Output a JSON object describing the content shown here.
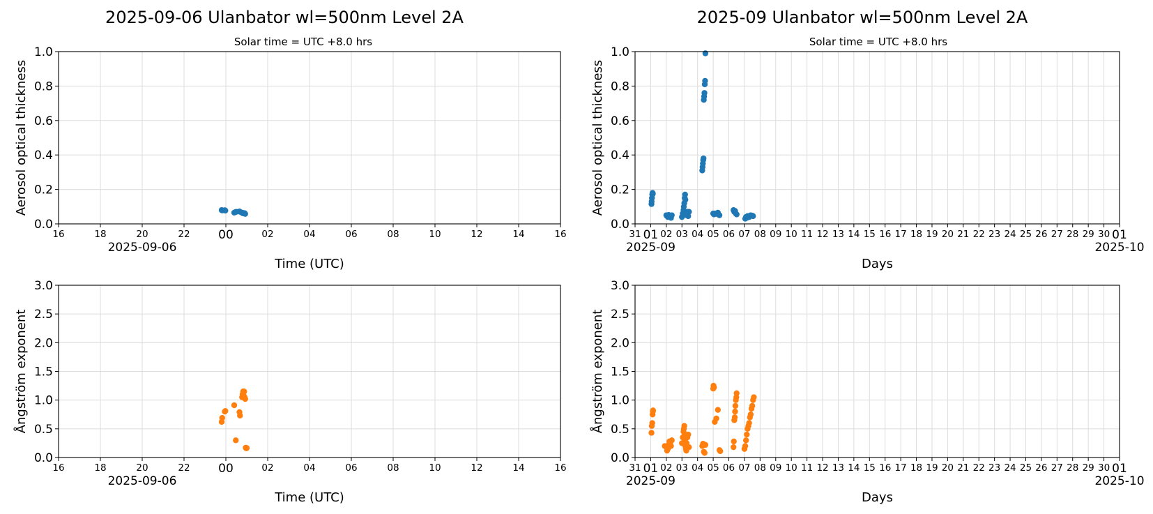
{
  "colors": {
    "aot": "#1f77b4",
    "angstrom": "#ff7f0e",
    "grid": "#dcdcdc"
  },
  "columns": [
    {
      "title": "2025-09-06  Ulanbator  wl=500nm  Level 2A",
      "subtitle": "Solar time = UTC +8.0 hrs"
    },
    {
      "title": "2025-09  Ulanbator  wl=500nm  Level 2A",
      "subtitle": "Solar time = UTC +8.0 hrs"
    }
  ],
  "chart_data": [
    {
      "type": "scatter",
      "panel": "daily-aot",
      "xlabel": "Time (UTC)",
      "ylabel": "Aerosol optical thickness",
      "x_unit": "hours relative to 2025-09-06 00:00 UTC",
      "xlim": [
        -8,
        40
      ],
      "ylim": [
        0,
        1.0
      ],
      "yticks": [
        "0.0",
        "0.2",
        "0.4",
        "0.6",
        "0.8",
        "1.0"
      ],
      "xticks": [
        "16",
        "18",
        "20",
        "22",
        "00",
        "02",
        "04",
        "06",
        "08",
        "10",
        "12",
        "14",
        "16"
      ],
      "date_label": "2025-09-06",
      "series": [
        {
          "x": [
            7.6,
            7.65,
            7.9,
            7.95,
            8.8,
            8.9,
            9.0,
            9.3,
            9.35,
            9.55,
            9.6,
            9.7,
            9.75,
            9.8,
            9.85
          ],
          "y": [
            0.08,
            0.078,
            0.079,
            0.077,
            0.065,
            0.068,
            0.07,
            0.072,
            0.07,
            0.065,
            0.062,
            0.063,
            0.06,
            0.062,
            0.058
          ]
        }
      ]
    },
    {
      "type": "scatter",
      "panel": "monthly-aot",
      "xlabel": "Days",
      "ylabel": "Aerosol optical thickness",
      "x_unit": "day of September 2025",
      "xlim": [
        0,
        31
      ],
      "ylim": [
        0,
        1.0
      ],
      "yticks": [
        "0.0",
        "0.2",
        "0.4",
        "0.6",
        "0.8",
        "1.0"
      ],
      "xticks": [
        "31",
        "01",
        "02",
        "03",
        "04",
        "05",
        "06",
        "07",
        "08",
        "09",
        "10",
        "11",
        "12",
        "13",
        "14",
        "15",
        "16",
        "17",
        "18",
        "19",
        "20",
        "21",
        "22",
        "23",
        "24",
        "25",
        "26",
        "27",
        "28",
        "29",
        "30",
        "01"
      ],
      "date_label_start": "2025-09",
      "date_label_end": "2025-10",
      "series": [
        {
          "x": [
            1.05,
            1.06,
            1.08,
            1.1,
            1.12,
            1.14,
            2.0,
            2.05,
            2.1,
            2.15,
            2.2,
            2.25,
            2.3,
            2.35,
            3.0,
            3.05,
            3.1,
            3.12,
            3.15,
            3.18,
            3.2,
            3.22,
            3.25,
            3.3,
            3.35,
            3.4,
            3.45,
            4.3,
            4.32,
            4.34,
            4.36,
            4.38,
            4.4,
            4.42,
            4.44,
            4.46,
            4.48,
            4.5,
            5.0,
            5.05,
            5.1,
            5.2,
            5.3,
            5.4,
            6.3,
            6.35,
            6.4,
            6.45,
            6.5,
            7.05,
            7.1,
            7.15,
            7.2,
            7.3,
            7.4,
            7.5,
            7.55
          ],
          "y": [
            0.115,
            0.13,
            0.15,
            0.17,
            0.18,
            0.175,
            0.05,
            0.045,
            0.04,
            0.052,
            0.048,
            0.038,
            0.035,
            0.05,
            0.04,
            0.06,
            0.08,
            0.1,
            0.12,
            0.15,
            0.17,
            0.14,
            0.06,
            0.05,
            0.07,
            0.045,
            0.07,
            0.31,
            0.33,
            0.35,
            0.37,
            0.38,
            0.72,
            0.74,
            0.76,
            0.81,
            0.83,
            0.99,
            0.06,
            0.055,
            0.06,
            0.058,
            0.065,
            0.05,
            0.08,
            0.07,
            0.075,
            0.06,
            0.055,
            0.03,
            0.04,
            0.035,
            0.045,
            0.04,
            0.05,
            0.048,
            0.045
          ]
        }
      ]
    },
    {
      "type": "scatter",
      "panel": "daily-angstrom",
      "xlabel": "Time (UTC)",
      "ylabel": "Ångström exponent",
      "x_unit": "hours relative to 2025-09-06 00:00 UTC",
      "xlim": [
        -8,
        40
      ],
      "ylim": [
        0,
        3.0
      ],
      "yticks": [
        "0.0",
        "0.5",
        "1.0",
        "1.5",
        "2.0",
        "2.5",
        "3.0"
      ],
      "xticks": [
        "16",
        "18",
        "20",
        "22",
        "00",
        "02",
        "04",
        "06",
        "08",
        "10",
        "12",
        "14",
        "16"
      ],
      "date_label": "2025-09-06",
      "series": [
        {
          "x": [
            7.6,
            7.65,
            7.9,
            7.95,
            8.8,
            8.95,
            9.3,
            9.35,
            9.55,
            9.6,
            9.65,
            9.7,
            9.75,
            9.8,
            9.85,
            9.9,
            9.95,
            10.0
          ],
          "y": [
            0.62,
            0.69,
            0.8,
            0.81,
            0.91,
            0.3,
            0.79,
            0.73,
            1.05,
            1.1,
            1.15,
            1.08,
            1.15,
            1.05,
            1.02,
            0.17,
            0.16,
            0.165
          ]
        }
      ]
    },
    {
      "type": "scatter",
      "panel": "monthly-angstrom",
      "xlabel": "Days",
      "ylabel": "Ångström exponent",
      "x_unit": "day of September 2025",
      "xlim": [
        0,
        31
      ],
      "ylim": [
        0,
        3.0
      ],
      "yticks": [
        "0.0",
        "0.5",
        "1.0",
        "1.5",
        "2.0",
        "2.5",
        "3.0"
      ],
      "xticks": [
        "31",
        "01",
        "02",
        "03",
        "04",
        "05",
        "06",
        "07",
        "08",
        "09",
        "10",
        "11",
        "12",
        "13",
        "14",
        "15",
        "16",
        "17",
        "18",
        "19",
        "20",
        "21",
        "22",
        "23",
        "24",
        "25",
        "26",
        "27",
        "28",
        "29",
        "30",
        "01"
      ],
      "date_label_start": "2025-09",
      "date_label_end": "2025-10",
      "series": [
        {
          "x": [
            1.05,
            1.07,
            1.1,
            1.12,
            1.14,
            1.15,
            1.9,
            2.0,
            2.05,
            2.1,
            2.15,
            2.2,
            2.25,
            2.3,
            2.35,
            3.0,
            3.05,
            3.1,
            3.12,
            3.15,
            3.18,
            3.2,
            3.22,
            3.25,
            3.28,
            3.3,
            3.35,
            3.4,
            3.45,
            4.3,
            4.35,
            4.4,
            4.45,
            4.5,
            5.0,
            5.02,
            5.05,
            5.1,
            5.2,
            5.3,
            5.4,
            5.45,
            6.3,
            6.32,
            6.35,
            6.38,
            6.4,
            6.42,
            6.45,
            6.48,
            6.5,
            7.0,
            7.05,
            7.1,
            7.15,
            7.2,
            7.25,
            7.3,
            7.35,
            7.4,
            7.45,
            7.5,
            7.55,
            7.6
          ],
          "y": [
            0.43,
            0.55,
            0.6,
            0.75,
            0.8,
            0.82,
            0.2,
            0.18,
            0.12,
            0.15,
            0.22,
            0.28,
            0.25,
            0.2,
            0.3,
            0.25,
            0.35,
            0.45,
            0.5,
            0.55,
            0.4,
            0.3,
            0.2,
            0.15,
            0.12,
            0.25,
            0.35,
            0.4,
            0.18,
            0.2,
            0.24,
            0.1,
            0.08,
            0.22,
            1.2,
            1.25,
            1.22,
            0.62,
            0.68,
            0.83,
            0.13,
            0.11,
            0.18,
            0.28,
            0.65,
            0.7,
            0.8,
            0.9,
            1.0,
            1.05,
            1.12,
            0.15,
            0.2,
            0.3,
            0.4,
            0.5,
            0.55,
            0.6,
            0.7,
            0.75,
            0.85,
            0.9,
            1.0,
            1.05
          ]
        }
      ]
    }
  ]
}
